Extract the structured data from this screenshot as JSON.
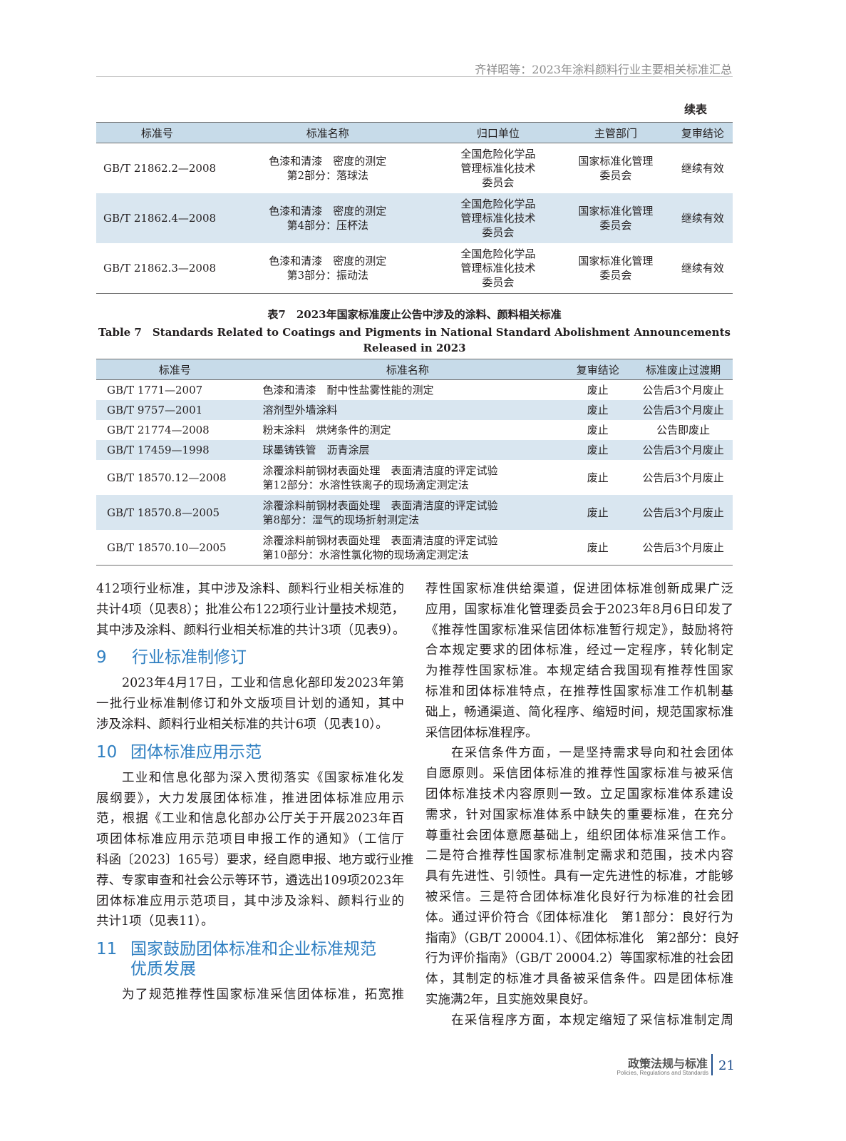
{
  "header": {
    "running_title": "齐祥昭等：2023年涂料颜料行业主要相关标准汇总"
  },
  "table_cont": {
    "label": "续表",
    "columns": [
      "标准号",
      "标准名称",
      "归口单位",
      "主管部门",
      "复审结论"
    ],
    "rows": [
      {
        "num": "GB/T 21862.2—2008",
        "name": [
          "色漆和清漆　密度的测定",
          "第2部分：落球法"
        ],
        "unit": [
          "全国危险化学品",
          "管理标准化技术",
          "委员会"
        ],
        "dept": [
          "国家标准化管理",
          "委员会"
        ],
        "result": "继续有效"
      },
      {
        "num": "GB/T 21862.4—2008",
        "name": [
          "色漆和清漆　密度的测定",
          "第4部分：压杯法"
        ],
        "unit": [
          "全国危险化学品",
          "管理标准化技术",
          "委员会"
        ],
        "dept": [
          "国家标准化管理",
          "委员会"
        ],
        "result": "继续有效"
      },
      {
        "num": "GB/T 21862.3—2008",
        "name": [
          "色漆和清漆　密度的测定",
          "第3部分：振动法"
        ],
        "unit": [
          "全国危险化学品",
          "管理标准化技术",
          "委员会"
        ],
        "dept": [
          "国家标准化管理",
          "委员会"
        ],
        "result": "继续有效"
      }
    ]
  },
  "table7": {
    "caption_cn": "表7　2023年国家标准废止公告中涉及的涂料、颜料相关标准",
    "caption_en_1": "Table 7　Standards Related to Coatings and Pigments in National Standard Abolishment Announcements",
    "caption_en_2": "Released in 2023",
    "columns": [
      "标准号",
      "标准名称",
      "复审结论",
      "标准废止过渡期"
    ],
    "rows": [
      {
        "num": "GB/T 1771—2007",
        "name": [
          "色漆和清漆　耐中性盐雾性能的测定"
        ],
        "result": "废止",
        "period": "公告后3个月废止"
      },
      {
        "num": "GB/T 9757—2001",
        "name": [
          "溶剂型外墙涂料"
        ],
        "result": "废止",
        "period": "公告后3个月废止"
      },
      {
        "num": "GB/T 21774—2008",
        "name": [
          "粉末涂料　烘烤条件的测定"
        ],
        "result": "废止",
        "period": "公告即废止"
      },
      {
        "num": "GB/T 17459—1998",
        "name": [
          "球墨铸铁管　沥青涂层"
        ],
        "result": "废止",
        "period": "公告后3个月废止"
      },
      {
        "num": "GB/T 18570.12—2008",
        "name": [
          "涂覆涂料前钢材表面处理　表面清洁度的评定试验",
          "第12部分：水溶性铁离子的现场滴定测定法"
        ],
        "result": "废止",
        "period": "公告后3个月废止"
      },
      {
        "num": "GB/T 18570.8—2005",
        "name": [
          "涂覆涂料前钢材表面处理　表面清洁度的评定试验",
          "第8部分：湿气的现场折射测定法"
        ],
        "result": "废止",
        "period": "公告后3个月废止"
      },
      {
        "num": "GB/T 18570.10—2005",
        "name": [
          "涂覆涂料前钢材表面处理　表面清洁度的评定试验",
          "第10部分：水溶性氯化物的现场滴定测定法"
        ],
        "result": "废止",
        "period": "公告后3个月废止"
      }
    ]
  },
  "body": {
    "left": [
      {
        "type": "p",
        "indent": false,
        "lines": [
          "412项行业标准，其中涉及涂料、颜料行业相关标准的",
          "共计4项（见表8）；批准公布122项行业计量技术规范，",
          "其中涉及涂料、颜料行业相关标准的共计3项（见表9）。"
        ]
      },
      {
        "type": "h",
        "num": "9",
        "lines": [
          "行业标准制修订"
        ]
      },
      {
        "type": "p",
        "indent": true,
        "lines": [
          "2023年4月17日，工业和信息化部印发2023年第",
          "一批行业标准制修订和外文版项目计划的通知，其中",
          "涉及涂料、颜料行业相关标准的共计6项（见表10）。"
        ]
      },
      {
        "type": "h",
        "num": "10",
        "lines": [
          "团体标准应用示范"
        ]
      },
      {
        "type": "p",
        "indent": true,
        "lines": [
          "工业和信息化部为深入贯彻落实《国家标准化发",
          "展纲要》，大力发展团体标准，推进团体标准应用示",
          "范，根据《工业和信息化部办公厅关于开展2023年百",
          "项团体标准应用示范项目申报工作的通知》（工信厅",
          "科函〔2023〕165号）要求，经自愿申报、地方或行业推",
          "荐、专家审查和社会公示等环节，遴选出109项2023年",
          "团体标准应用示范项目，其中涉及涂料、颜料行业的",
          "共计1项（见表11）。"
        ]
      },
      {
        "type": "h",
        "num": "11",
        "lines": [
          "国家鼓励团体标准和企业标准规范",
          "优质发展"
        ]
      },
      {
        "type": "p",
        "indent": true,
        "cont": true,
        "lines": [
          "为了规范推荐性国家标准采信团体标准，拓宽推"
        ]
      }
    ],
    "right": [
      {
        "type": "p",
        "indent": false,
        "lines": [
          "荐性国家标准供给渠道，促进团体标准创新成果广泛",
          "应用，国家标准化管理委员会于2023年8月6日印发了",
          "《推荐性国家标准采信团体标准暂行规定》，鼓励将符",
          "合本规定要求的团体标准，经过一定程序，转化制定",
          "为推荐性国家标准。本规定结合我国现有推荐性国家",
          "标准和团体标准特点，在推荐性国家标准工作机制基",
          "础上，畅通渠道、简化程序、缩短时间，规范国家标准",
          "采信团体标准程序。"
        ]
      },
      {
        "type": "p",
        "indent": true,
        "lines": [
          "在采信条件方面，一是坚持需求导向和社会团体",
          "自愿原则。采信团体标准的推荐性国家标准与被采信",
          "团体标准技术内容原则一致。立足国家标准体系建设",
          "需求，针对国家标准体系中缺失的重要标准，在充分",
          "尊重社会团体意愿基础上，组织团体标准采信工作。",
          "二是符合推荐性国家标准制定需求和范围，技术内容",
          "具有先进性、引领性。具有一定先进性的标准，才能够",
          "被采信。三是符合团体标准化良好行为标准的社会团",
          "体。通过评价符合《团体标准化　第1部分：良好行为",
          "指南》（GB/T 20004.1）、《团体标准化　第2部分：良好",
          "行为评价指南》（GB/T 20004.2）等国家标准的社会团",
          "体，其制定的标准才具备被采信条件。四是团体标准",
          "实施满2年，且实施效果良好。"
        ]
      },
      {
        "type": "p",
        "indent": true,
        "cont": true,
        "lines": [
          "在采信程序方面，本规定缩短了采信标准制定周"
        ]
      }
    ]
  },
  "footer": {
    "section_cn": "政策法规与标准",
    "section_en": "Policies, Regulations and Standards",
    "page": "21"
  },
  "colors": {
    "heading": "#2f7fc1",
    "table_header": "#c7dbe9",
    "table_alt_row": "#d9e6f0",
    "footer_accent": "#1f4e8c"
  }
}
